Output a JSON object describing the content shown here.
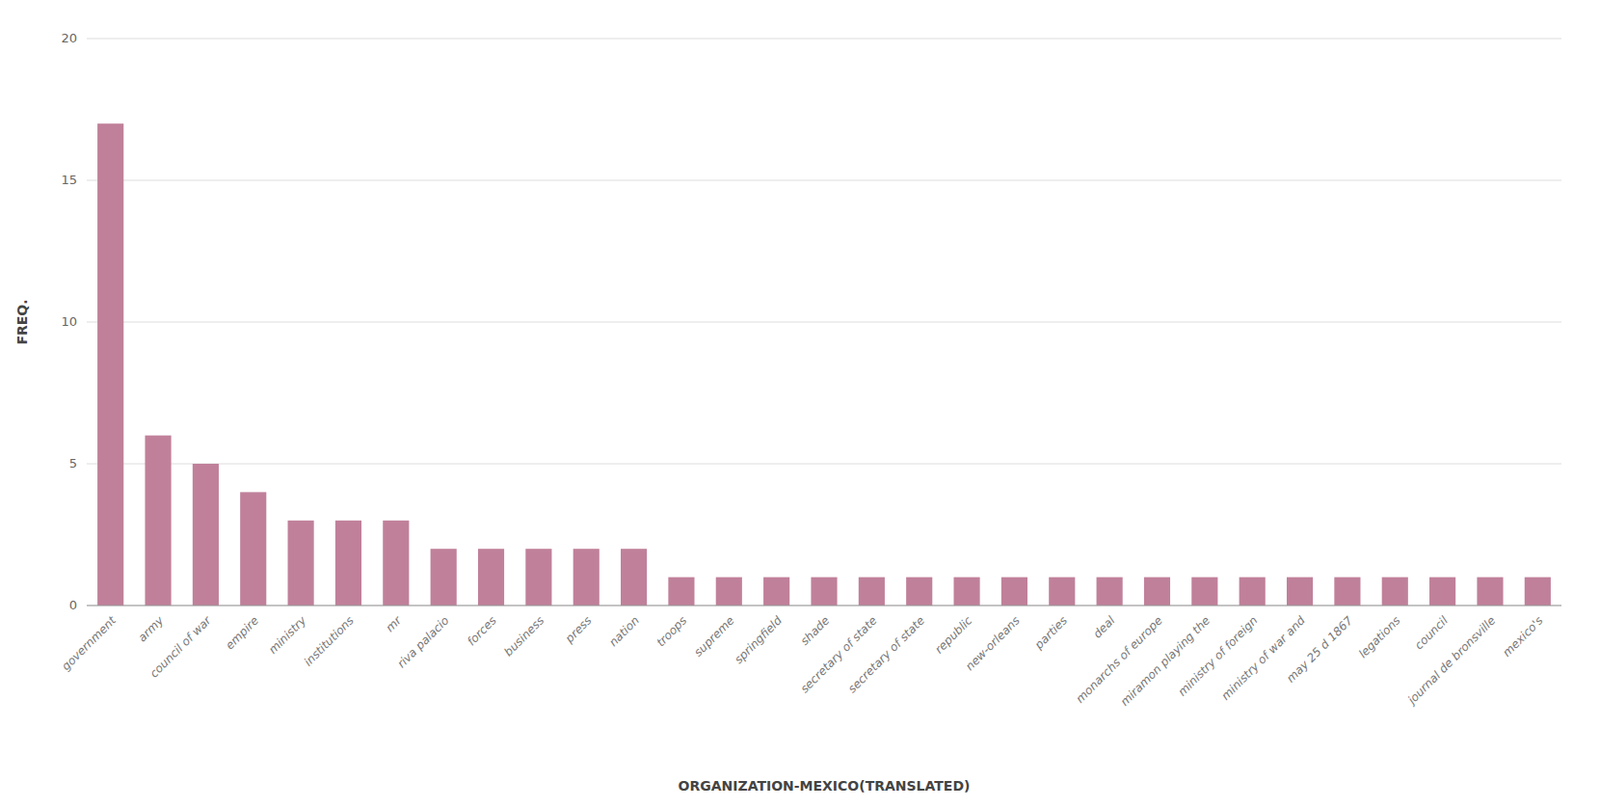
{
  "chart_data": {
    "type": "bar",
    "categories": [
      "government",
      "army",
      "council of war",
      "empire",
      "ministry",
      "institutions",
      "mr",
      "riva palacio",
      "forces",
      "business",
      "press",
      "nation",
      "troops",
      "supreme",
      "springfield",
      "shade",
      "secretary of state",
      "secretary of state",
      "republic",
      "new-orleans",
      "parties",
      "deal",
      "monarchs of europe",
      "miramon playing the",
      "ministry of foreign",
      "ministry of war and",
      "may 25 d 1867",
      "legations",
      "council",
      "journal de bronsville",
      "mexico's"
    ],
    "values": [
      17,
      6,
      5,
      4,
      3,
      3,
      3,
      2,
      2,
      2,
      2,
      2,
      1,
      1,
      1,
      1,
      1,
      1,
      1,
      1,
      1,
      1,
      1,
      1,
      1,
      1,
      1,
      1,
      1,
      1,
      1
    ],
    "color": "#c0809a",
    "xlabel": "ORGANIZATION-MEXICO(TRANSLATED)",
    "ylabel": "FREQ.",
    "ylim": [
      0,
      20
    ],
    "yticks": [
      0,
      5,
      10,
      15,
      20
    ],
    "grid": true
  }
}
